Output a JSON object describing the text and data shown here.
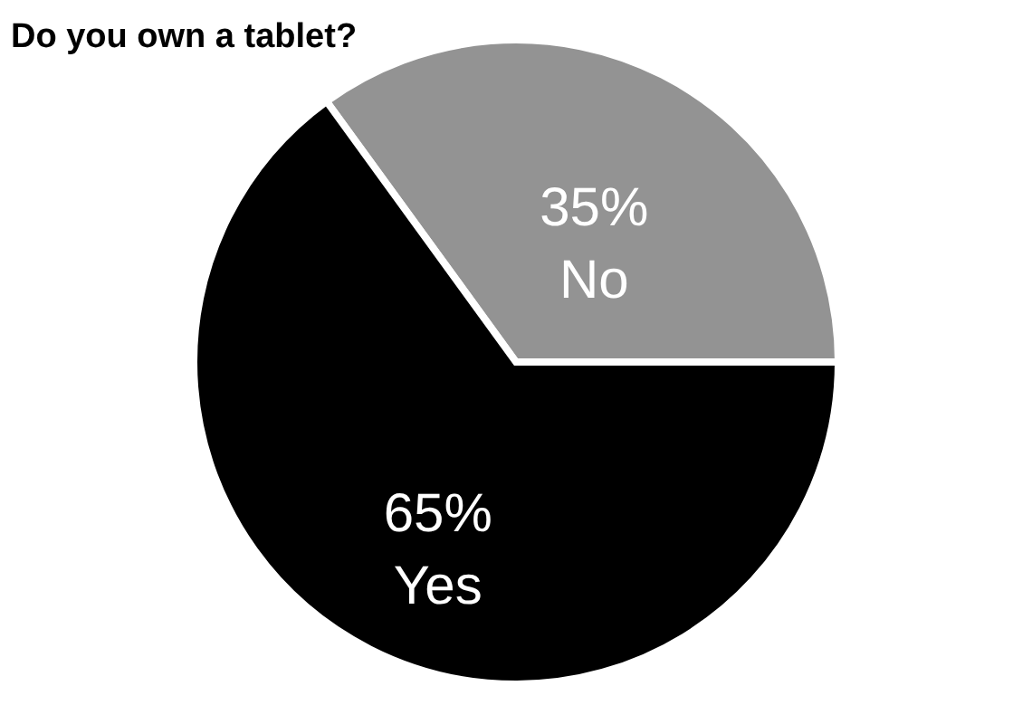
{
  "chart_data": {
    "type": "pie",
    "title": "Do you own a tablet?",
    "categories": [
      "No",
      "Yes"
    ],
    "values": [
      35,
      65
    ],
    "value_labels": [
      "35%",
      "65%"
    ],
    "colors": [
      "#939393",
      "#000000"
    ],
    "legend": false
  }
}
